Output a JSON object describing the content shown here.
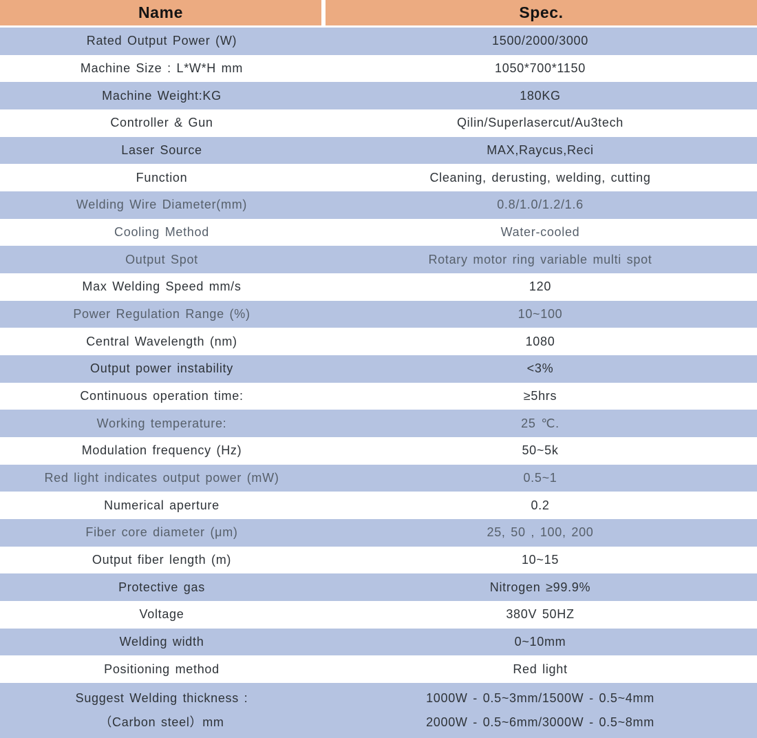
{
  "table": {
    "header": {
      "name_label": "Name",
      "spec_label": "Spec."
    },
    "colors": {
      "header_bg": "#ECAB81",
      "row_blue_bg": "#B5C3E1",
      "row_white_bg": "#FFFFFF",
      "text_dark": "#2E3338",
      "text_gray": "#57606B",
      "header_text": "#141414"
    },
    "rows": [
      {
        "name": "Rated Output Power (W)",
        "spec": "1500/2000/3000",
        "tone": "dark"
      },
      {
        "name": "Machine Size : L*W*H mm",
        "spec": "1050*700*1150",
        "tone": "dark"
      },
      {
        "name": "Machine Weight:KG",
        "spec": "180KG",
        "tone": "dark"
      },
      {
        "name": "Controller & Gun",
        "spec": "Qilin/Superlasercut/Au3tech",
        "tone": "dark"
      },
      {
        "name": "Laser Source",
        "spec": "MAX,Raycus,Reci",
        "tone": "dark"
      },
      {
        "name": "Function",
        "spec": "Cleaning, derusting, welding, cutting",
        "tone": "dark"
      },
      {
        "name": "Welding Wire Diameter(mm)",
        "spec": "0.8/1.0/1.2/1.6",
        "tone": "gray"
      },
      {
        "name": "Cooling Method",
        "spec": "Water-cooled",
        "tone": "gray"
      },
      {
        "name": "Output Spot",
        "spec": "Rotary motor ring variable multi spot",
        "tone": "gray"
      },
      {
        "name": "Max Welding Speed mm/s",
        "spec": "120",
        "tone": "dark"
      },
      {
        "name": "Power Regulation Range (%)",
        "spec": "10~100",
        "tone": "gray"
      },
      {
        "name": "Central Wavelength (nm)",
        "spec": "1080",
        "tone": "dark"
      },
      {
        "name": "Output power instability",
        "spec": "<3%",
        "tone": "dark"
      },
      {
        "name": "Continuous operation time:",
        "spec": "≥5hrs",
        "tone": "dark"
      },
      {
        "name": "Working temperature:",
        "spec": "25 ℃.",
        "tone": "gray"
      },
      {
        "name": "Modulation frequency (Hz)",
        "spec": "50~5k",
        "tone": "dark"
      },
      {
        "name": "Red light indicates output power (mW)",
        "spec": "0.5~1",
        "tone": "gray"
      },
      {
        "name": "Numerical aperture",
        "spec": "0.2",
        "tone": "dark"
      },
      {
        "name": "Fiber core diameter (μm)",
        "spec": "25, 50 , 100, 200",
        "tone": "gray"
      },
      {
        "name": "Output fiber length (m)",
        "spec": "10~15",
        "tone": "dark"
      },
      {
        "name": "Protective gas",
        "spec": "Nitrogen ≥99.9%",
        "tone": "dark"
      },
      {
        "name": "Voltage",
        "spec": "380V 50HZ",
        "tone": "dark"
      },
      {
        "name": "Welding width",
        "spec": "0~10mm",
        "tone": "dark"
      },
      {
        "name": "Positioning method",
        "spec": "Red light",
        "tone": "dark"
      },
      {
        "name": "Suggest Welding thickness :\n（Carbon steel）mm",
        "spec": "1000W - 0.5~3mm/1500W - 0.5~4mm\n2000W - 0.5~6mm/3000W - 0.5~8mm",
        "tone": "dark"
      }
    ]
  }
}
